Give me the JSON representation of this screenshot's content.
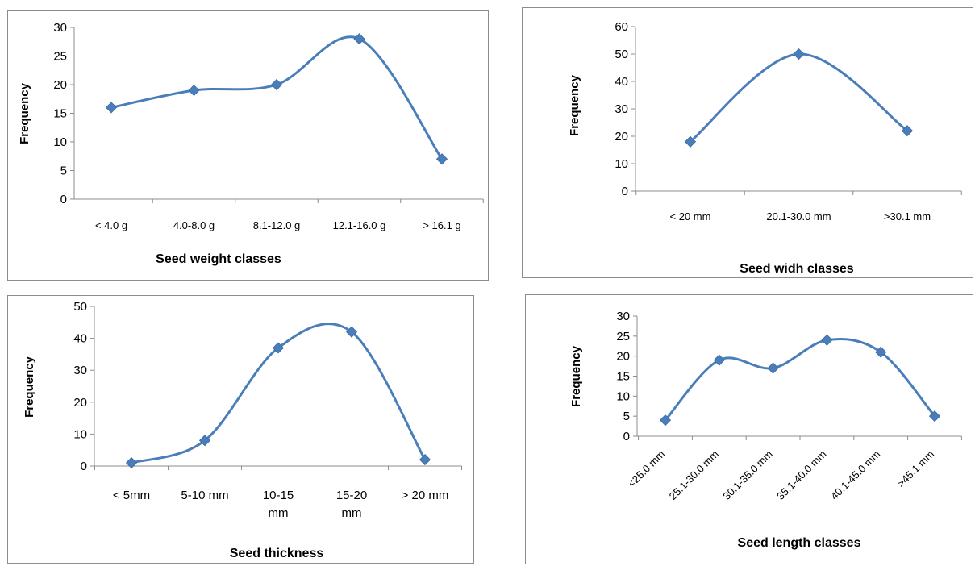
{
  "chart_data": [
    {
      "type": "line",
      "smooth": true,
      "categories": [
        "< 4.0 g",
        "4.0-8.0 g",
        "8.1-12.0 g",
        "12.1-16.0 g",
        "> 16.1 g"
      ],
      "values": [
        16,
        19,
        20,
        28,
        7
      ],
      "xlabel": "Seed weight classes",
      "ylabel": "Frequency",
      "ylim": [
        0,
        30
      ],
      "yticks": [
        0,
        5,
        10,
        15,
        20,
        25,
        30
      ],
      "grid": false,
      "legend": "none",
      "color": "#4a7ebb"
    },
    {
      "type": "line",
      "smooth": true,
      "categories": [
        "< 20 mm",
        "20.1-30.0 mm",
        ">30.1 mm"
      ],
      "values": [
        18,
        50,
        22
      ],
      "xlabel": "Seed widh classes",
      "ylabel": "Frequency",
      "ylim": [
        0,
        60
      ],
      "yticks": [
        0,
        10,
        20,
        30,
        40,
        50,
        60
      ],
      "grid": false,
      "legend": "none",
      "color": "#4a7ebb"
    },
    {
      "type": "line",
      "smooth": true,
      "categories": [
        "< 5mm",
        "5-10 mm",
        "10-15 mm",
        "15-20 mm",
        "> 20 mm"
      ],
      "values": [
        1,
        8,
        37,
        42,
        2
      ],
      "xlabel": "Seed thickness",
      "ylabel": "Frequency",
      "ylim": [
        0,
        50
      ],
      "yticks": [
        0,
        10,
        20,
        30,
        40,
        50
      ],
      "grid": false,
      "legend": "none",
      "color": "#4a7ebb"
    },
    {
      "type": "line",
      "smooth": true,
      "categories": [
        "<25.0 mm",
        "25.1-30.0 mm",
        "30.1-35.0 mm",
        "35.1-40.0 mm",
        "40.1-45.0 mm",
        ">45.1 mm"
      ],
      "values": [
        4,
        19,
        17,
        24,
        21,
        5
      ],
      "xlabel": "Seed length classes",
      "ylabel": "Frequency",
      "ylim": [
        0,
        30
      ],
      "yticks": [
        0,
        5,
        10,
        15,
        20,
        25,
        30
      ],
      "grid": false,
      "legend": "none",
      "color": "#4a7ebb"
    }
  ]
}
